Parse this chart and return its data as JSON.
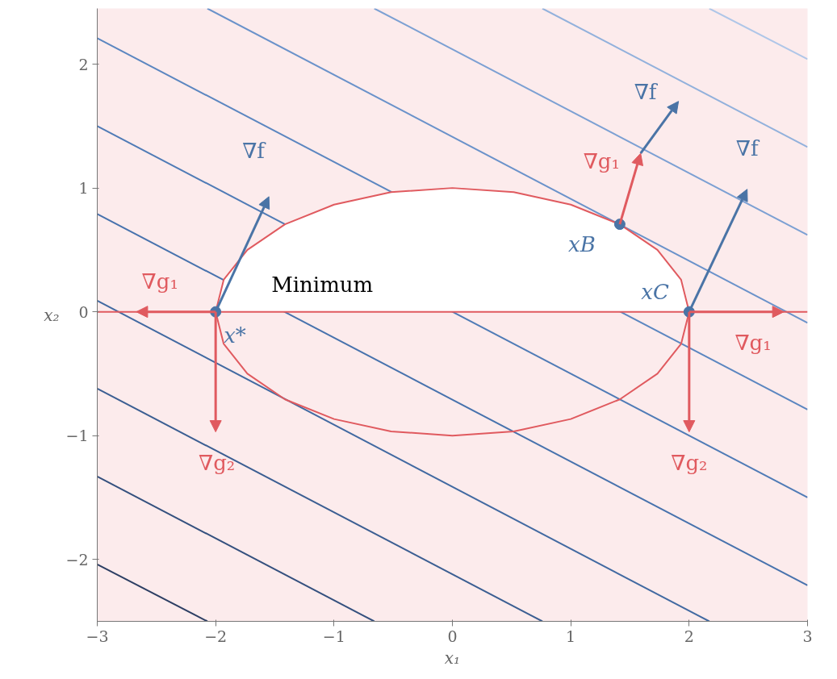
{
  "chart_data": {
    "type": "line",
    "xlabel": "x₁",
    "ylabel": "x₂",
    "xlim": [
      -3,
      3
    ],
    "ylim": [
      -2.5,
      2.45
    ],
    "xticks": [
      {
        "value": -3,
        "label": "−3"
      },
      {
        "value": -2,
        "label": "−2"
      },
      {
        "value": -1,
        "label": "−1"
      },
      0,
      1,
      2,
      3
    ],
    "yticks": [
      {
        "value": -2,
        "label": "−2"
      },
      {
        "value": -1,
        "label": "−1"
      },
      0,
      1,
      2
    ],
    "line_style": "solid",
    "series": [
      {
        "color": "#2c3e63",
        "x": [
          -3,
          -2.07
        ],
        "values": [
          -2.04,
          -2.5
        ]
      },
      {
        "color": "#34507e",
        "x": [
          -3,
          -0.66
        ],
        "values": [
          -1.33,
          -2.5
        ]
      },
      {
        "color": "#3b5e92",
        "x": [
          -3,
          0.76
        ],
        "values": [
          -0.62,
          -2.5
        ]
      },
      {
        "color": "#4169a1",
        "x": [
          -3,
          2.17
        ],
        "values": [
          0.09,
          -2.5
        ]
      },
      {
        "color": "#4772ad",
        "x": [
          -3,
          3
        ],
        "values": [
          0.79,
          -2.21
        ]
      },
      {
        "color": "#4f7bb6",
        "x": [
          -3,
          3
        ],
        "values": [
          1.5,
          -1.5
        ]
      },
      {
        "color": "#5b86c0",
        "x": [
          -3,
          3
        ],
        "values": [
          2.21,
          -0.79
        ]
      },
      {
        "color": "#6a92ca",
        "x": [
          -2.07,
          3
        ],
        "values": [
          2.45,
          -0.09
        ]
      },
      {
        "color": "#7ca0d3",
        "x": [
          -0.66,
          3
        ],
        "values": [
          2.45,
          0.62
        ]
      },
      {
        "color": "#92b1dc",
        "x": [
          0.76,
          3
        ],
        "values": [
          2.45,
          1.33
        ]
      },
      {
        "color": "#afc6e8",
        "x": [
          2.17,
          3
        ],
        "values": [
          2.45,
          2.04
        ]
      },
      {
        "color": "#e05a5f",
        "x": [
          -2,
          -1.932,
          -1.732,
          -1.414,
          -1,
          -0.518,
          0,
          0.518,
          1,
          1.414,
          1.732,
          1.932,
          2
        ],
        "values": [
          0,
          -0.259,
          -0.5,
          -0.707,
          -0.866,
          -0.966,
          -1,
          -0.966,
          -0.866,
          -0.707,
          -0.5,
          -0.259,
          0
        ]
      },
      {
        "type": "area",
        "color": "#e05a5f",
        "x": [
          -2,
          -1.932,
          -1.732,
          -1.414,
          -1,
          -0.518,
          0,
          0.518,
          1,
          1.414,
          1.732,
          1.932,
          2
        ],
        "values": [
          0,
          0.259,
          0.5,
          0.707,
          0.866,
          0.966,
          1,
          0.966,
          0.866,
          0.707,
          0.5,
          0.259,
          0
        ]
      },
      {
        "color": "#e05a5f",
        "x": [
          -3,
          3
        ],
        "values": [
          0,
          0
        ]
      },
      {
        "type": "scatter",
        "marker": "circle",
        "color": "#4a74a6",
        "x": [
          -2,
          1.414,
          2
        ],
        "values": [
          0,
          0.707,
          0
        ]
      }
    ],
    "annotations": [
      "Minimum",
      {
        "text": "x*",
        "x": -2,
        "y": 0
      },
      {
        "text": "xB",
        "x": 1.414,
        "y": 0.707
      },
      {
        "text": "xC",
        "x": 2,
        "y": 0
      },
      "∇f",
      {
        "text": "∇g₁",
        "x": -2,
        "y": 0
      },
      {
        "text": "∇g₂",
        "x": -2,
        "y": 0
      },
      "∇f",
      {
        "text": "∇g₁",
        "x": 1.414,
        "y": 0.707
      },
      "∇f",
      {
        "text": "∇g₁",
        "x": 2,
        "y": 0
      },
      {
        "text": "∇g₂",
        "x": 2,
        "y": 0
      }
    ]
  }
}
